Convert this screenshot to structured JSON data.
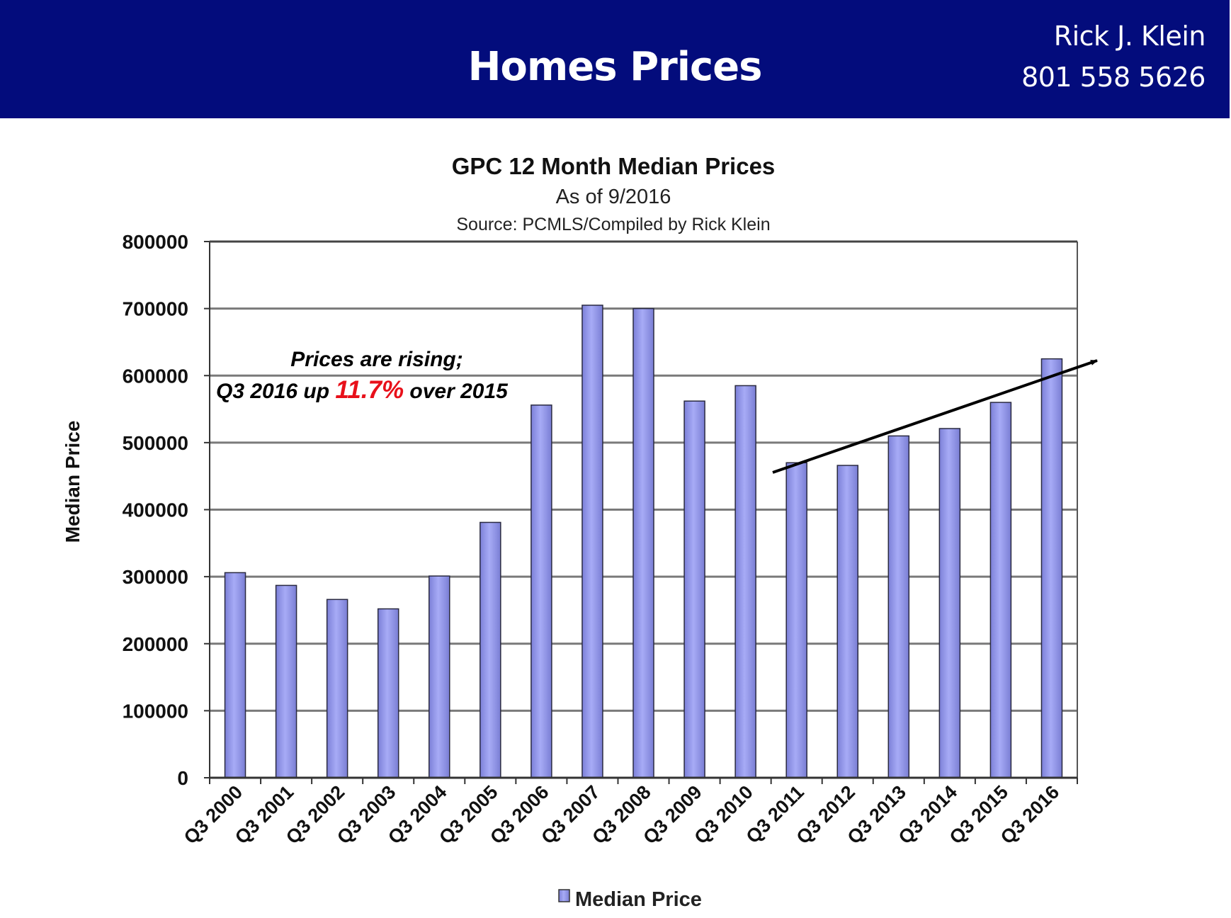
{
  "header": {
    "title": "Homes Prices",
    "name": "Rick J. Klein",
    "phone": "801 558 5626",
    "background": "#030c7c"
  },
  "chart_data": {
    "type": "bar",
    "title": "GPC 12 Month Median Prices",
    "subtitle": "As of 9/2016",
    "source": "Source: PCMLS/Compiled by Rick Klein",
    "xlabel": "",
    "ylabel": "Median Price",
    "ylim": [
      0,
      800000
    ],
    "yticks": [
      "0",
      "100000",
      "200000",
      "300000",
      "400000",
      "500000",
      "600000",
      "700000",
      "800000"
    ],
    "grid": true,
    "legend": {
      "position": "bottom",
      "entries": [
        "Median Price"
      ]
    },
    "categories": [
      "Q3 2000",
      "Q3 2001",
      "Q3 2002",
      "Q3 2003",
      "Q3 2004",
      "Q3 2005",
      "Q3 2006",
      "Q3 2007",
      "Q3 2008",
      "Q3 2009",
      "Q3 2010",
      "Q3 2011",
      "Q3 2012",
      "Q3 2013",
      "Q3 2014",
      "Q3 2015",
      "Q3 2016"
    ],
    "series": [
      {
        "name": "Median Price",
        "color": "#9a9ff0",
        "values": [
          306000,
          287000,
          266000,
          252000,
          301000,
          381000,
          556000,
          705000,
          700000,
          562000,
          585000,
          470000,
          466000,
          510000,
          521000,
          560000,
          625000
        ]
      }
    ],
    "annotation": {
      "line1": "Prices are rising;",
      "line2_pre": "Q3 2016 up ",
      "line2_highlight": "11.7%",
      "line2_post": " over 2015",
      "highlight_color": "#e8101a"
    },
    "trend_arrow": {
      "from_category": "Q3 2011",
      "to_category": "Q3 2016"
    }
  }
}
